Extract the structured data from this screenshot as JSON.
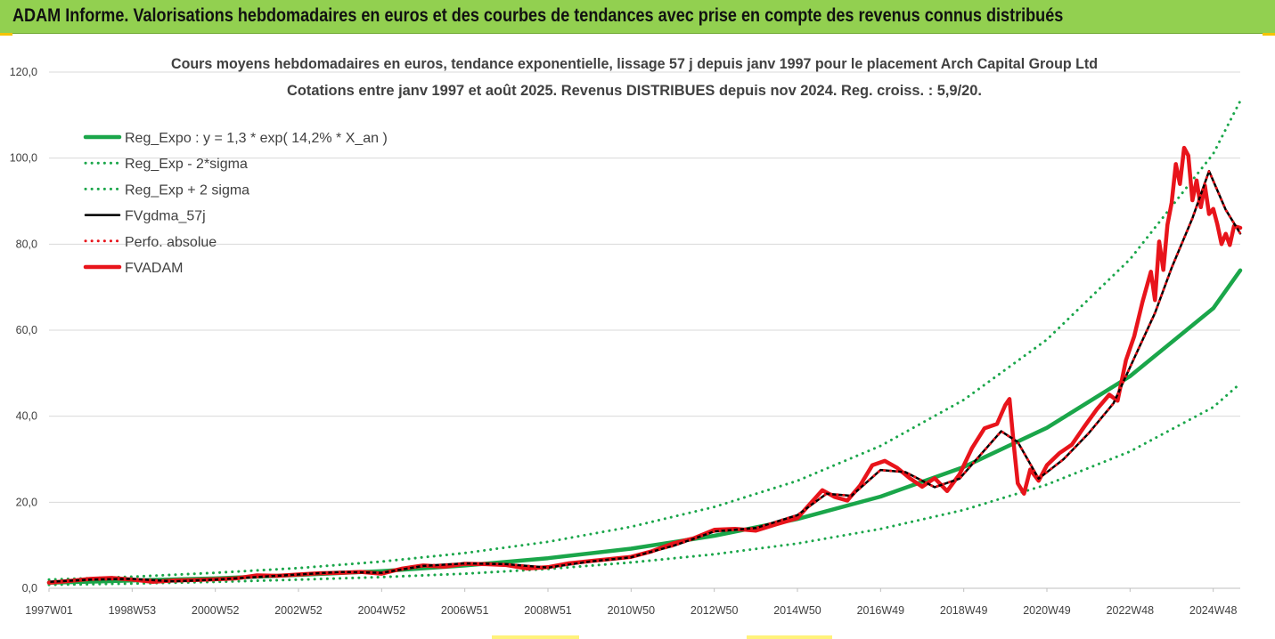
{
  "banner": {
    "title": "ADAM Informe. Valorisations hebdomadaires en euros et des courbes de tendances avec prise en compte des revenus connus distribués"
  },
  "colors": {
    "banner_bg": "#92d050",
    "trend": "#1aa64a",
    "price": "#e8141b",
    "smoothed": "#000000",
    "grid": "#d9d9d9"
  },
  "chart_data": {
    "type": "line",
    "title": "Cours moyens hebdomadaires en euros, tendance exponentielle, lissage 57 j depuis janv 1997 pour le placement Arch Capital Group Ltd",
    "subtitle": "Cotations entre janv 1997 et août 2025. Revenus DISTRIBUES depuis nov 2024. Reg. croiss. : 5,9/20.",
    "xlabel": "",
    "ylabel": "",
    "ylim": [
      0,
      120
    ],
    "yticks": [
      "0,0",
      "20,0",
      "40,0",
      "60,0",
      "80,0",
      "100,0",
      "120,0"
    ],
    "x_range": [
      1997.0,
      2025.65
    ],
    "xticks": [
      {
        "label": "1997W01",
        "x": 1997.0
      },
      {
        "label": "1998W53",
        "x": 1999.0
      },
      {
        "label": "2000W52",
        "x": 2001.0
      },
      {
        "label": "2002W52",
        "x": 2003.0
      },
      {
        "label": "2004W52",
        "x": 2005.0
      },
      {
        "label": "2006W51",
        "x": 2007.0
      },
      {
        "label": "2008W51",
        "x": 2009.0
      },
      {
        "label": "2010W50",
        "x": 2011.0
      },
      {
        "label": "2012W50",
        "x": 2013.0
      },
      {
        "label": "2014W50",
        "x": 2015.0
      },
      {
        "label": "2016W49",
        "x": 2017.0
      },
      {
        "label": "2018W49",
        "x": 2019.0
      },
      {
        "label": "2020W49",
        "x": 2021.0
      },
      {
        "label": "2022W48",
        "x": 2023.0
      },
      {
        "label": "2024W48",
        "x": 2025.0
      }
    ],
    "grid": "horizontal",
    "legend_position": "top-left",
    "series": [
      {
        "name": "Reg_Expo : y = 1,3 * exp( 14,2% *  X_an )",
        "style": "solid-thick",
        "color": "#1aa64a",
        "x": [
          1997,
          1999,
          2001,
          2003,
          2005,
          2007,
          2009,
          2011,
          2013,
          2015,
          2017,
          2019,
          2021,
          2023,
          2025,
          2025.65
        ],
        "y": [
          1.3,
          1.8,
          2.3,
          3.1,
          4.0,
          5.3,
          7.0,
          9.2,
          12.2,
          16.1,
          21.3,
          28.2,
          37.3,
          49.3,
          65.1,
          73.9
        ]
      },
      {
        "name": "Reg_Exp - 2*sigma",
        "style": "dotted",
        "color": "#1aa64a",
        "x": [
          1997,
          1999,
          2001,
          2003,
          2005,
          2007,
          2009,
          2011,
          2013,
          2015,
          2017,
          2019,
          2021,
          2023,
          2025,
          2025.65
        ],
        "y": [
          0.8,
          1.1,
          1.5,
          2.0,
          2.6,
          3.4,
          4.5,
          6.0,
          7.9,
          10.4,
          13.8,
          18.2,
          24.1,
          31.8,
          42.1,
          47.6
        ]
      },
      {
        "name": "Reg_Exp + 2 sigma",
        "style": "dotted",
        "color": "#1aa64a",
        "x": [
          1997,
          1999,
          2001,
          2003,
          2005,
          2007,
          2009,
          2011,
          2013,
          2015,
          2017,
          2019,
          2021,
          2023,
          2025,
          2025.65
        ],
        "y": [
          2.0,
          2.7,
          3.6,
          4.7,
          6.2,
          8.2,
          10.8,
          14.3,
          18.9,
          25.0,
          33.1,
          43.8,
          57.8,
          76.5,
          101.0,
          113.3
        ]
      },
      {
        "name": "FVgdma_57j",
        "style": "solid",
        "color": "#000000",
        "x": [
          1997.0,
          1998.0,
          1999.0,
          2000.0,
          2001.0,
          2002.0,
          2003.0,
          2004.0,
          2005.0,
          2006.0,
          2007.0,
          2008.0,
          2009.0,
          2010.0,
          2011.0,
          2012.0,
          2013.0,
          2014.0,
          2015.0,
          2015.7,
          2016.3,
          2017.0,
          2017.6,
          2018.3,
          2018.9,
          2019.4,
          2019.9,
          2020.3,
          2020.8,
          2021.4,
          2022.0,
          2022.6,
          2023.1,
          2023.6,
          2024.0,
          2024.5,
          2024.9,
          2025.3,
          2025.65
        ],
        "y": [
          1.5,
          2.0,
          2.2,
          1.6,
          2.0,
          2.6,
          3.2,
          3.8,
          3.6,
          5.2,
          5.8,
          5.6,
          4.8,
          6.2,
          7.2,
          9.8,
          13.2,
          14.0,
          17.0,
          22.0,
          21.5,
          27.5,
          27.0,
          23.5,
          25.5,
          31.0,
          36.5,
          34.0,
          25.5,
          30.0,
          36.0,
          43.0,
          53.5,
          64.0,
          74.5,
          86.0,
          97.0,
          88.0,
          82.5
        ]
      },
      {
        "name": "Perfo. absolue",
        "style": "dotted",
        "color": "#e8141b",
        "x": [
          1997.0,
          1998.0,
          1999.0,
          2000.0,
          2001.0,
          2002.0,
          2003.0,
          2004.0,
          2005.0,
          2006.0,
          2007.0,
          2008.0,
          2009.0,
          2010.0,
          2011.0,
          2012.0,
          2013.0,
          2014.0,
          2015.0,
          2015.7,
          2016.3,
          2017.0,
          2017.6,
          2018.3,
          2018.9,
          2019.4,
          2019.9,
          2020.3,
          2020.8,
          2021.4,
          2022.0,
          2022.6,
          2023.1,
          2023.6,
          2024.0,
          2024.5,
          2024.9,
          2025.3,
          2025.65
        ],
        "y": [
          1.5,
          2.0,
          2.2,
          1.6,
          2.0,
          2.6,
          3.2,
          3.8,
          3.6,
          5.2,
          5.8,
          5.6,
          4.8,
          6.2,
          7.2,
          9.8,
          13.2,
          14.0,
          17.0,
          22.0,
          21.5,
          27.5,
          27.0,
          23.5,
          25.5,
          31.0,
          36.5,
          34.0,
          25.5,
          30.0,
          36.0,
          43.0,
          53.5,
          64.0,
          74.5,
          86.0,
          97.0,
          88.0,
          82.5
        ]
      },
      {
        "name": "FVADAM",
        "style": "solid-thick",
        "color": "#e8141b",
        "x": [
          1997.0,
          1997.5,
          1998.0,
          1998.5,
          1999.0,
          1999.5,
          2000.0,
          2000.5,
          2001.0,
          2001.5,
          2002.0,
          2002.5,
          2003.0,
          2003.5,
          2004.0,
          2004.5,
          2005.0,
          2005.5,
          2006.0,
          2006.5,
          2007.0,
          2007.5,
          2008.0,
          2008.5,
          2009.0,
          2009.5,
          2010.0,
          2010.5,
          2011.0,
          2011.5,
          2012.0,
          2012.5,
          2013.0,
          2013.5,
          2014.0,
          2014.5,
          2015.0,
          2015.3,
          2015.6,
          2015.9,
          2016.2,
          2016.5,
          2016.8,
          2017.1,
          2017.4,
          2017.7,
          2018.0,
          2018.3,
          2018.6,
          2018.9,
          2019.2,
          2019.5,
          2019.8,
          2020.0,
          2020.1,
          2020.2,
          2020.3,
          2020.45,
          2020.6,
          2020.8,
          2021.0,
          2021.3,
          2021.6,
          2021.9,
          2022.2,
          2022.5,
          2022.7,
          2022.9,
          2023.1,
          2023.3,
          2023.5,
          2023.6,
          2023.7,
          2023.8,
          2023.9,
          2024.0,
          2024.1,
          2024.2,
          2024.3,
          2024.4,
          2024.5,
          2024.6,
          2024.7,
          2024.8,
          2024.9,
          2025.0,
          2025.1,
          2025.2,
          2025.3,
          2025.4,
          2025.5,
          2025.65
        ],
        "y": [
          1.3,
          1.7,
          2.2,
          2.4,
          2.0,
          1.5,
          1.8,
          1.9,
          2.1,
          2.3,
          3.0,
          2.9,
          3.2,
          3.5,
          3.6,
          3.8,
          3.4,
          4.6,
          5.3,
          5.0,
          5.7,
          5.6,
          5.4,
          4.6,
          4.9,
          5.8,
          6.3,
          6.8,
          7.3,
          8.6,
          10.4,
          11.6,
          13.6,
          13.8,
          13.4,
          14.9,
          16.3,
          19.6,
          22.8,
          21.2,
          20.4,
          23.8,
          28.6,
          29.6,
          28.0,
          25.6,
          23.6,
          25.6,
          22.6,
          26.5,
          32.6,
          37.2,
          38.2,
          42.6,
          44.0,
          33.6,
          24.4,
          22.0,
          27.6,
          25.0,
          28.6,
          31.4,
          33.4,
          37.6,
          41.6,
          45.0,
          43.6,
          53.0,
          58.6,
          66.6,
          73.6,
          67.0,
          80.6,
          74.0,
          84.5,
          89.6,
          98.6,
          94.0,
          102.4,
          100.6,
          90.2,
          94.8,
          88.6,
          93.6,
          87.0,
          88.2,
          84.6,
          80.0,
          82.4,
          79.8,
          84.2,
          83.8
        ]
      }
    ]
  }
}
